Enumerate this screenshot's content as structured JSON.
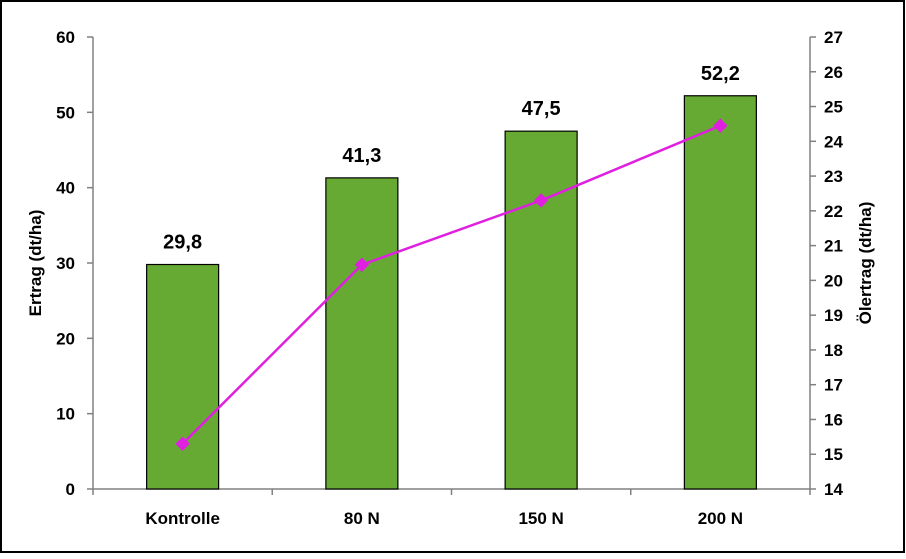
{
  "chart_data": {
    "type": "bar",
    "categories": [
      "Kontrolle",
      "80 N",
      "150 N",
      "200 N"
    ],
    "series": [
      {
        "type": "bar",
        "axis": "left",
        "color": "#66AA33",
        "values": [
          29.8,
          41.3,
          47.5,
          52.2
        ],
        "labels": [
          "29,8",
          "41,3",
          "47,5",
          "52,2"
        ]
      },
      {
        "type": "line",
        "axis": "right",
        "color": "#E020E0",
        "marker": "diamond",
        "values": [
          15.3,
          20.45,
          22.3,
          24.45
        ]
      }
    ],
    "ylabel": "Ertrag (dt/ha)",
    "y2label": "Ölertrag (dt/ha)",
    "ylim": [
      0,
      60
    ],
    "y2lim": [
      14,
      27
    ],
    "yticks": [
      "0",
      "10",
      "20",
      "30",
      "40",
      "50",
      "60"
    ],
    "y2ticks": [
      "14",
      "15",
      "16",
      "17",
      "18",
      "19",
      "20",
      "21",
      "22",
      "23",
      "24",
      "25",
      "26",
      "27"
    ],
    "grid": false,
    "legend": "none"
  }
}
